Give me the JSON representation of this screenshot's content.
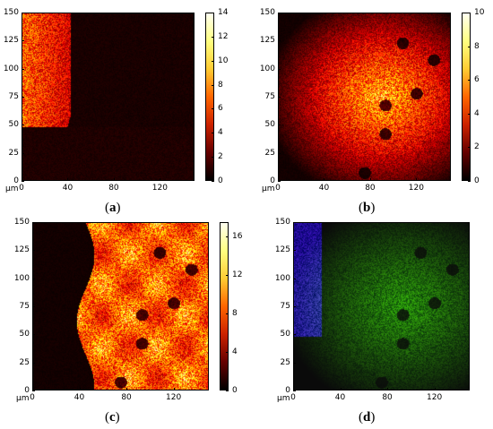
{
  "unit_label": "µm",
  "x_ticks": [
    "0",
    "40",
    "80",
    "120"
  ],
  "y_ticks": [
    "0",
    "25",
    "50",
    "75",
    "100",
    "125",
    "150"
  ],
  "panels": [
    {
      "id": "a",
      "caption_letter": "a",
      "colorbar_ticks": [
        "0",
        "2",
        "4",
        "6",
        "8",
        "10",
        "12",
        "14"
      ],
      "colorbar_max": 14,
      "has_colorbar": true,
      "colormap": "hot"
    },
    {
      "id": "b",
      "caption_letter": "b",
      "colorbar_ticks": [
        "0",
        "2",
        "4",
        "6",
        "8",
        "10"
      ],
      "colorbar_max": 10,
      "has_colorbar": true,
      "colormap": "hot"
    },
    {
      "id": "c",
      "caption_letter": "c",
      "colorbar_ticks": [
        "0",
        "4",
        "8",
        "12",
        "16"
      ],
      "colorbar_max": 17.5,
      "has_colorbar": true,
      "colormap": "hot"
    },
    {
      "id": "d",
      "caption_letter": "d",
      "has_colorbar": false,
      "colormap": "rgb-overlay"
    }
  ],
  "colors": {
    "background": "#050000",
    "frame": "#000000"
  }
}
